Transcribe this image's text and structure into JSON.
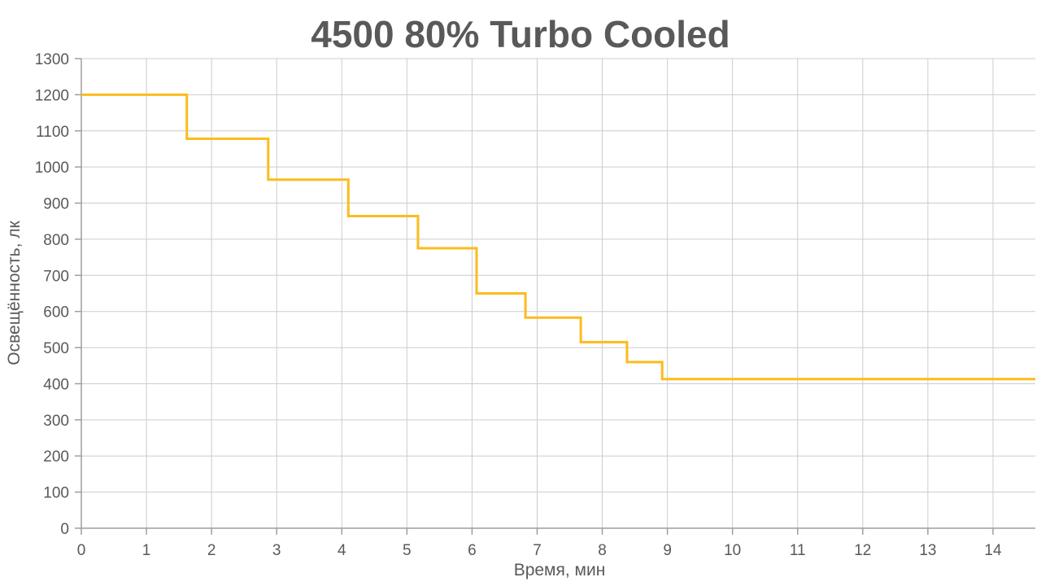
{
  "chart_data": {
    "type": "line",
    "step": true,
    "title": "4500 80% Turbo Cooled",
    "xlabel": "Время, мин",
    "ylabel": "Освещённость, лк",
    "xlim": [
      0,
      14.65
    ],
    "ylim": [
      0,
      1300
    ],
    "x_ticks": [
      0,
      1,
      2,
      3,
      4,
      5,
      6,
      7,
      8,
      9,
      10,
      11,
      12,
      13,
      14
    ],
    "x_tick_labels": [
      "0",
      "1",
      "2",
      "3",
      "4",
      "5",
      "6",
      "7",
      "8",
      "9",
      "10",
      "11",
      "12",
      "13",
      "14"
    ],
    "y_ticks": [
      0,
      100,
      200,
      300,
      400,
      500,
      600,
      700,
      800,
      900,
      1000,
      1100,
      1200,
      1300
    ],
    "y_tick_labels": [
      "0",
      "100",
      "200",
      "300",
      "400",
      "500",
      "600",
      "700",
      "800",
      "900",
      "1000",
      "1100",
      "1200",
      "1300"
    ],
    "grid": true,
    "legend": "none",
    "line_color": "#fbbc1c",
    "series": [
      {
        "x": [
          0,
          1.62,
          1.62,
          2.87,
          2.87,
          4.1,
          4.1,
          5.17,
          5.17,
          6.07,
          6.07,
          6.82,
          6.82,
          7.67,
          7.67,
          8.38,
          8.38,
          8.92,
          8.92,
          14.65
        ],
        "y": [
          1200,
          1200,
          1078,
          1078,
          965,
          965,
          864,
          864,
          775,
          775,
          650,
          650,
          583,
          583,
          515,
          515,
          460,
          460,
          413,
          413
        ]
      }
    ]
  }
}
